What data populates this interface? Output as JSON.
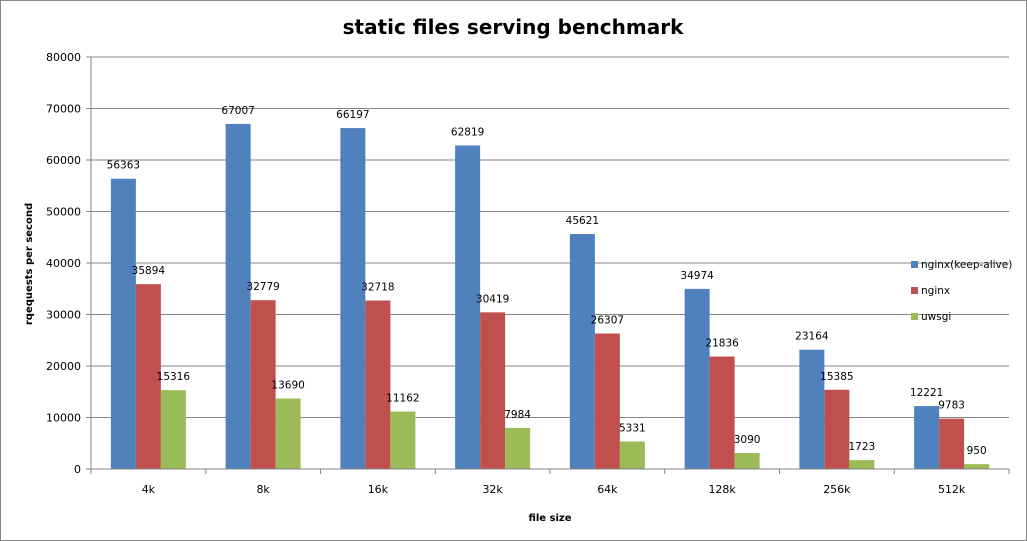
{
  "chart_data": {
    "type": "bar",
    "title": "static files serving benchmark",
    "xlabel": "file size",
    "ylabel": "rqequests per second",
    "categories": [
      "4k",
      "8k",
      "16k",
      "32k",
      "64k",
      "128k",
      "256k",
      "512k"
    ],
    "series": [
      {
        "name": "nginx(keep-alive)",
        "color": "#4F81BD",
        "values": [
          56363,
          67007,
          66197,
          62819,
          45621,
          34974,
          23164,
          12221
        ]
      },
      {
        "name": "nginx",
        "color": "#C0504D",
        "values": [
          35894,
          32779,
          32718,
          30419,
          26307,
          21836,
          15385,
          9783
        ]
      },
      {
        "name": "uwsgi",
        "color": "#9BBB59",
        "values": [
          15316,
          13690,
          11162,
          7984,
          5331,
          3090,
          1723,
          950
        ]
      }
    ],
    "ylim": [
      0,
      80000
    ],
    "yticks": [
      0,
      10000,
      20000,
      30000,
      40000,
      50000,
      60000,
      70000,
      80000
    ],
    "grid": true,
    "legend_position": "right"
  }
}
